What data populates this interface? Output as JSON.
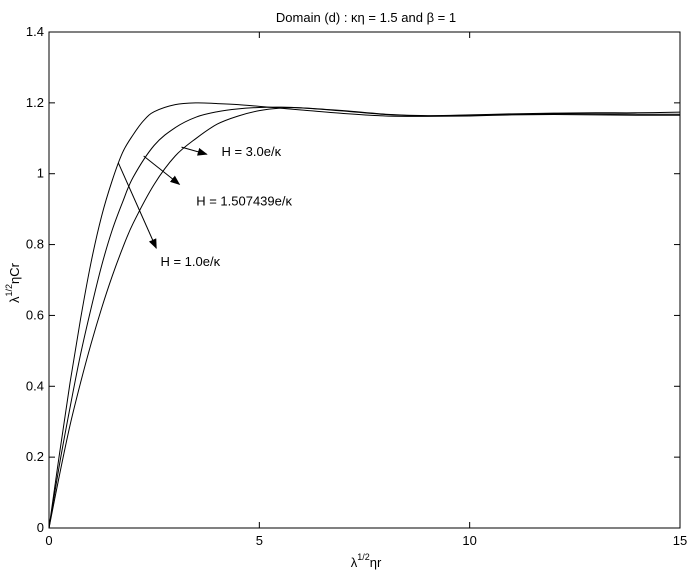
{
  "chart_data": {
    "type": "line",
    "title": "Domain (d) : κη = 1.5 and β = 1",
    "xlabel": {
      "pre": "λ",
      "sup": "1/2",
      "post": "ηr"
    },
    "ylabel": {
      "pre": "λ",
      "sup": "1/2",
      "post": "ηCr"
    },
    "xlim": [
      0,
      15
    ],
    "ylim": [
      0,
      1.4
    ],
    "xticks": [
      "0",
      "5",
      "10",
      "15"
    ],
    "yticks": [
      "0",
      "0.2",
      "0.4",
      "0.6",
      "0.8",
      "1",
      "1.2",
      "1.4"
    ],
    "grid": false,
    "series": [
      {
        "name": "H = 3.0e/κ",
        "x": [
          0,
          0.25,
          0.5,
          0.75,
          1.0,
          1.25,
          1.5,
          1.75,
          2.0,
          2.25,
          2.5,
          3.0,
          3.5,
          4.0,
          4.5,
          5.0,
          5.5,
          6.0,
          7.0,
          8.0,
          9.0,
          10.0,
          11.0,
          12.0,
          13.0,
          14.0,
          15.0
        ],
        "y": [
          0,
          0.21,
          0.41,
          0.59,
          0.75,
          0.88,
          0.98,
          1.06,
          1.11,
          1.15,
          1.175,
          1.195,
          1.2,
          1.198,
          1.195,
          1.19,
          1.185,
          1.18,
          1.17,
          1.163,
          1.162,
          1.163,
          1.166,
          1.167,
          1.166,
          1.165,
          1.165
        ]
      },
      {
        "name": "H = 1.507439e/κ",
        "x": [
          0,
          0.25,
          0.5,
          0.75,
          1.0,
          1.25,
          1.5,
          1.75,
          2.0,
          2.5,
          3.0,
          3.5,
          4.0,
          4.5,
          5.0,
          5.5,
          6.0,
          7.0,
          8.0,
          9.0,
          10.0,
          11.0,
          12.0,
          13.0,
          14.0,
          15.0
        ],
        "y": [
          0,
          0.18,
          0.34,
          0.49,
          0.62,
          0.74,
          0.84,
          0.92,
          0.99,
          1.08,
          1.13,
          1.16,
          1.175,
          1.183,
          1.187,
          1.188,
          1.186,
          1.177,
          1.167,
          1.163,
          1.164,
          1.167,
          1.169,
          1.169,
          1.168,
          1.168
        ]
      },
      {
        "name": "H = 1.0e/κ",
        "x": [
          0,
          0.25,
          0.5,
          0.75,
          1.0,
          1.25,
          1.5,
          1.75,
          2.0,
          2.5,
          3.0,
          3.5,
          4.0,
          4.5,
          5.0,
          5.5,
          6.0,
          7.0,
          8.0,
          9.0,
          10.0,
          11.0,
          12.0,
          13.0,
          14.0,
          15.0
        ],
        "y": [
          0,
          0.15,
          0.29,
          0.41,
          0.52,
          0.62,
          0.71,
          0.79,
          0.86,
          0.97,
          1.05,
          1.1,
          1.14,
          1.163,
          1.178,
          1.185,
          1.186,
          1.178,
          1.168,
          1.164,
          1.166,
          1.169,
          1.171,
          1.172,
          1.172,
          1.174
        ]
      }
    ],
    "annotations": [
      {
        "text": "H = 3.0e/κ",
        "series": 0,
        "from": [
          3.15,
          1.075
        ],
        "to": [
          3.75,
          1.055
        ],
        "label_at": [
          4.1,
          1.05
        ]
      },
      {
        "text": "H = 1.507439e/κ",
        "series": 1,
        "from": [
          2.25,
          1.05
        ],
        "to": [
          3.1,
          0.97
        ],
        "label_at": [
          3.5,
          0.91
        ]
      },
      {
        "text": "H = 1.0e/κ",
        "series": 2,
        "from": [
          1.65,
          1.03
        ],
        "to": [
          2.55,
          0.79
        ],
        "label_at": [
          2.65,
          0.74
        ]
      }
    ]
  }
}
